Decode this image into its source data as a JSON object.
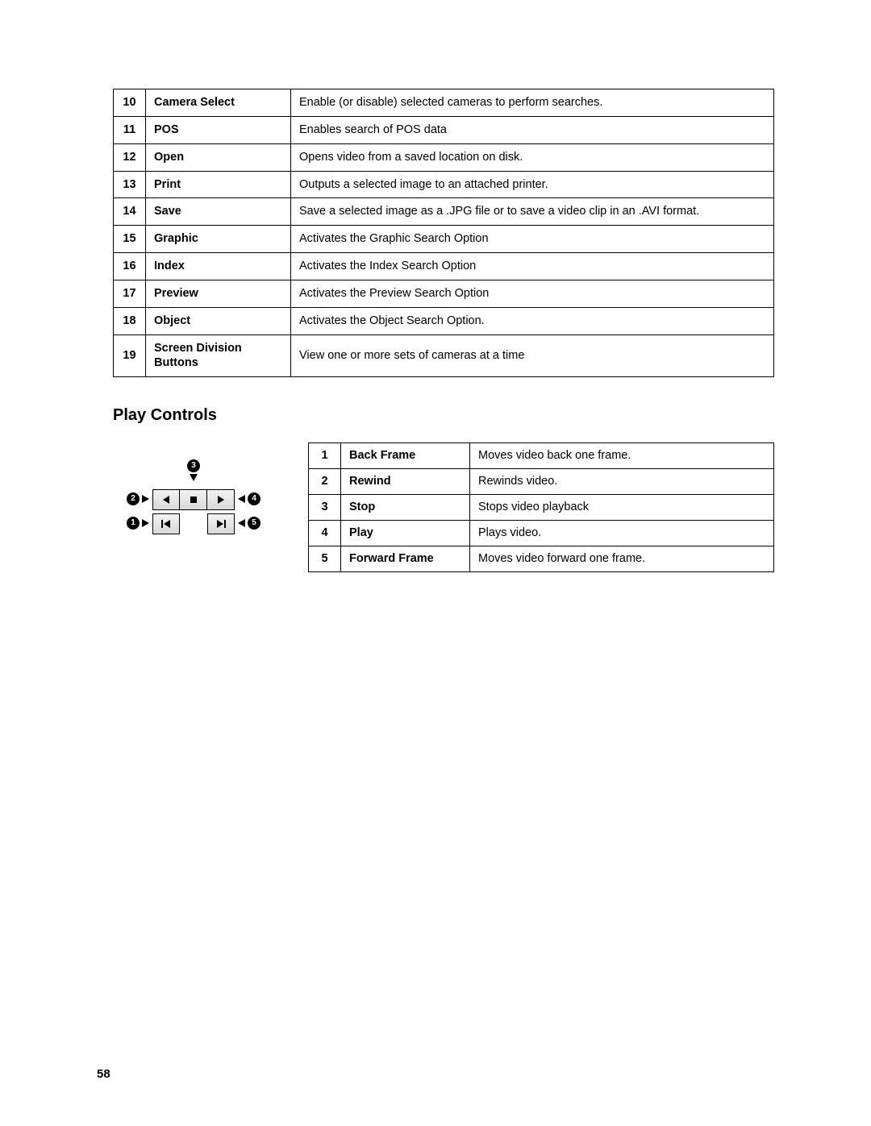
{
  "top_table": {
    "rows": [
      {
        "num": "10",
        "name": "Camera Select",
        "desc": "Enable (or disable) selected cameras to perform searches."
      },
      {
        "num": "11",
        "name": "POS",
        "desc": "Enables search of POS data"
      },
      {
        "num": "12",
        "name": "Open",
        "desc": "Opens video from a saved location on disk."
      },
      {
        "num": "13",
        "name": "Print",
        "desc": "Outputs a selected image to an attached printer."
      },
      {
        "num": "14",
        "name": "Save",
        "desc": "Save a selected image as a .JPG file or to save a video clip in an .AVI format."
      },
      {
        "num": "15",
        "name": "Graphic",
        "desc": "Activates the Graphic Search Option"
      },
      {
        "num": "16",
        "name": "Index",
        "desc": "Activates the Index Search Option"
      },
      {
        "num": "17",
        "name": "Preview",
        "desc": "Activates the Preview Search Option"
      },
      {
        "num": "18",
        "name": "Object",
        "desc": "Activates the Object Search Option."
      },
      {
        "num": "19",
        "name": "Screen Division Buttons",
        "desc": "View one or more sets of cameras at a time"
      }
    ]
  },
  "section_title": "Play Controls",
  "play_table": {
    "rows": [
      {
        "num": "1",
        "name": "Back Frame",
        "desc": "Moves video back one frame."
      },
      {
        "num": "2",
        "name": "Rewind",
        "desc": "Rewinds video."
      },
      {
        "num": "3",
        "name": "Stop",
        "desc": "Stops video playback"
      },
      {
        "num": "4",
        "name": "Play",
        "desc": "Plays video."
      },
      {
        "num": "5",
        "name": "Forward Frame",
        "desc": "Moves video forward one frame."
      }
    ]
  },
  "callouts": {
    "c1": "1",
    "c2": "2",
    "c3": "3",
    "c4": "4",
    "c5": "5"
  },
  "page_number": "58"
}
